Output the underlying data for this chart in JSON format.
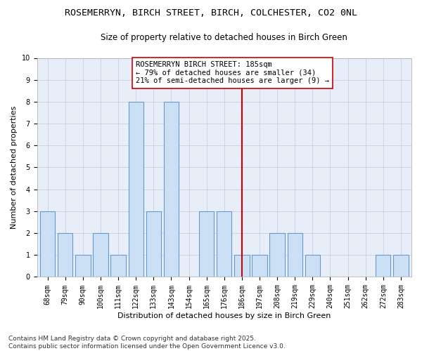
{
  "title1": "ROSEMERRYN, BIRCH STREET, BIRCH, COLCHESTER, CO2 0NL",
  "title2": "Size of property relative to detached houses in Birch Green",
  "xlabel": "Distribution of detached houses by size in Birch Green",
  "ylabel": "Number of detached properties",
  "categories": [
    "68sqm",
    "79sqm",
    "90sqm",
    "100sqm",
    "111sqm",
    "122sqm",
    "133sqm",
    "143sqm",
    "154sqm",
    "165sqm",
    "176sqm",
    "186sqm",
    "197sqm",
    "208sqm",
    "219sqm",
    "229sqm",
    "240sqm",
    "251sqm",
    "262sqm",
    "272sqm",
    "283sqm"
  ],
  "values": [
    3,
    2,
    1,
    2,
    1,
    8,
    3,
    8,
    0,
    3,
    3,
    1,
    1,
    2,
    2,
    1,
    0,
    0,
    0,
    1,
    1
  ],
  "bar_color": "#cce0f5",
  "bar_edge_color": "#6699cc",
  "ref_line_index": 11,
  "ref_line_color": "#cc0000",
  "annotation_line1": "ROSEMERRYN BIRCH STREET: 185sqm",
  "annotation_line2": "← 79% of detached houses are smaller (34)",
  "annotation_line3": "21% of semi-detached houses are larger (9) →",
  "annotation_box_color": "#cc0000",
  "ylim": [
    0,
    10
  ],
  "yticks": [
    0,
    1,
    2,
    3,
    4,
    5,
    6,
    7,
    8,
    9,
    10
  ],
  "footer1": "Contains HM Land Registry data © Crown copyright and database right 2025.",
  "footer2": "Contains public sector information licensed under the Open Government Licence v3.0.",
  "fig_bg_color": "#ffffff",
  "plot_bg_color": "#e8eef8",
  "grid_color": "#c8d0e0",
  "title_fontsize": 9.5,
  "subtitle_fontsize": 8.5,
  "axis_label_fontsize": 8,
  "tick_fontsize": 7,
  "annotation_fontsize": 7.5,
  "footer_fontsize": 6.5
}
